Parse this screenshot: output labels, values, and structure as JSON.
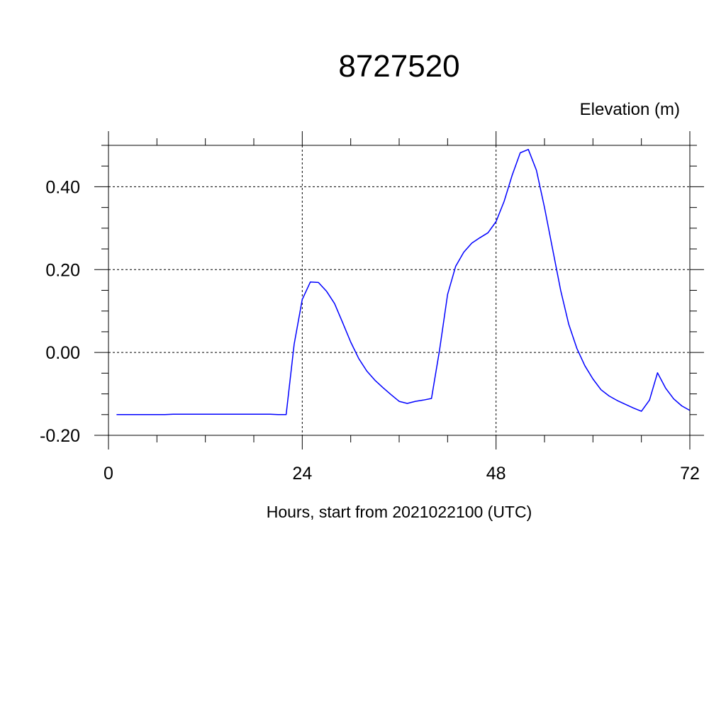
{
  "chart_data": {
    "type": "line",
    "title": "8727520",
    "ylabel": "Elevation (m)",
    "xlabel": "Hours, start from 2021022100 (UTC)",
    "xlim": [
      0,
      72
    ],
    "ylim": [
      -0.2,
      0.5
    ],
    "x_ticks": [
      0,
      24,
      48,
      72
    ],
    "x_tick_labels": [
      "0",
      "24",
      "48",
      "72"
    ],
    "y_ticks": [
      -0.2,
      0.0,
      0.2,
      0.4
    ],
    "y_tick_labels": [
      "-0.20",
      "0.00",
      "0.20",
      "0.40"
    ],
    "grid": true,
    "line_color": "#0000ff",
    "series": [
      {
        "x": [
          1,
          2,
          3,
          4,
          5,
          6,
          7,
          8,
          9,
          10,
          11,
          12,
          13,
          14,
          15,
          16,
          17,
          18,
          19,
          20,
          21,
          22,
          23,
          24,
          25,
          26,
          27,
          28,
          29,
          30,
          31,
          32,
          33,
          34,
          35,
          36,
          37,
          38,
          39,
          40,
          41,
          42,
          43,
          44,
          45,
          46,
          47,
          48,
          49,
          50,
          51,
          52,
          53,
          54,
          55,
          56,
          57,
          58,
          59,
          60,
          61,
          62,
          63,
          64,
          65,
          66,
          67,
          68,
          69,
          70,
          71,
          72
        ],
        "y": [
          -0.15,
          -0.15,
          -0.15,
          -0.15,
          -0.15,
          -0.15,
          -0.15,
          -0.149,
          -0.149,
          -0.149,
          -0.149,
          -0.149,
          -0.149,
          -0.149,
          -0.149,
          -0.149,
          -0.149,
          -0.149,
          -0.149,
          -0.149,
          -0.15,
          -0.15,
          0.02,
          0.128,
          0.17,
          0.169,
          0.148,
          0.118,
          0.072,
          0.025,
          -0.015,
          -0.045,
          -0.067,
          -0.085,
          -0.102,
          -0.118,
          -0.123,
          -0.118,
          -0.115,
          -0.111,
          0.005,
          0.14,
          0.208,
          0.242,
          0.264,
          0.277,
          0.289,
          0.316,
          0.365,
          0.428,
          0.482,
          0.49,
          0.44,
          0.35,
          0.25,
          0.15,
          0.068,
          0.01,
          -0.032,
          -0.064,
          -0.09,
          -0.105,
          -0.116,
          -0.125,
          -0.134,
          -0.142,
          -0.115,
          -0.049,
          -0.086,
          -0.112,
          -0.129,
          -0.14
        ]
      }
    ]
  }
}
